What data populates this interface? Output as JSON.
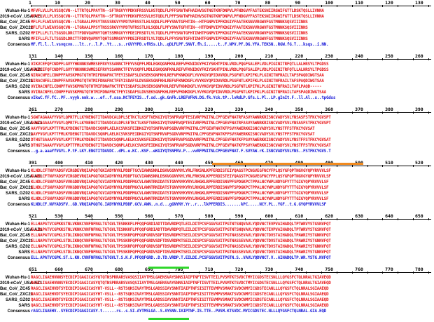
{
  "labels": [
    "Wuhan-Hu-1",
    "2019-nCoV_USA-AZ1",
    "Bat_CoV_ZC45",
    "Bat_CoV_ZXC21",
    "SARS_GZ02",
    "SARS",
    "Consensus"
  ],
  "colors": {
    "identical": "#e8171a",
    "consensus": "#1a1ad8",
    "ruler": "#000000",
    "rbd_marker": "#f08a1f",
    "cleavage_marker": "#2fd72a"
  },
  "blocks": [
    {
      "ruler": [
        "1",
        "10",
        "20",
        "30",
        "40",
        "50",
        "60",
        "70",
        "80",
        "90",
        "100",
        "110",
        "120",
        "130"
      ],
      "rows": [
        "MFVFLVLLPLVSSQCVN--LTTRTQLPPAYTN--SFTRGVYYPDKVFRSSVLHSTQDLFLPFFSNVTWFHAIHVSGTNGTKRFDNPVLPFNDGVYFASTEKSNIIRGWIFGTTLDSKTQSLLIVNNA",
        "MFVFLVLLPLVSSQCVN--LTTRTQLPPAYTN--SFTRGVYYPDKVFRSSVLHSTQDLFLPFFSNVTWFHAIHVSGTNGTKRFDNPVLPFNDGVYFASTEKSNIIRGWIFGTTLDSKTQSLLIVNNA",
        "MFLFLFLWIAVSGQCVN--LTGRAALPPSYTNSSSRGVYYPDTVFRSSTLHLSQDLFLPFYSNVTGFHTIN--HTFGNPVIPFKDGIYFAATEKSNVVRGWVFGSTMNNKSQSVIIINNS",
        "MFLFLFLWIAVSGQCVN--LTGRAALPPSYTNSSSRGVYYPDTVFRSSTLHLSQDLFLPFYSNVTGFHTIN--HTFDNPVIPFKDGIYFAATEKSNVVRGWVFGSTMNNKSQSVIIINNS",
        "MFIFLLFLTLTSGSDLDRCTTFDDVQAPNYTQHTSSMRGVYYPDEIFRSDTLYLTQDLFLPFYSNVTGFHTINHTFGNPVIPFKDGIYFAATEKSNVVRGWVFGSTMNNKSQSVIIINNS",
        "MFIFLLFLTLTSGSDLDRCTTFDDVQAPNYTQHTSSMRGVYYPDEIFRSDTLYLTQDLFLPFYSNVTGFHTINHTFGNPVIPFKDGIYFAATEKSNVVRGWVFGSTMNNKSQSVIIINNS",
        "MF.fl.l..l.vsvqcvn...lt..r..l.P..Yt...s..rGVYYPD.vfRSs.Lh..qDLFLPF.SNVT.fh.i.....t..F.NPV.PF.DG.YFA.TEKSN..RGW.fG.T...ksqs..i.NN."
      ]
    },
    {
      "ruler": [
        "131",
        "140",
        "150",
        "160",
        "170",
        "180",
        "190",
        "200",
        "210",
        "220",
        "230",
        "240",
        "250",
        "260"
      ],
      "rows": [
        "VIKVCEFQFCNDPFLGVYYHKNNKSWMESEFRVYSSANNCTFEYVSQPFLMDLEGKQGNFKNLREFVFKNIDGYFKIYSKHTPINLVRDLPQGFSALEPLVDLPIGINITRFQTLLALHRSYLTPGDSS",
        "VIKVCEFQFCNDPFLGVYYHKNNKSWMESEFRVYSSANNCTFEYVSQPFLMDLEGKQGNFKNLREFVFKNIDGYFKIYSKHTPINLVRDLPQGFSALEPLVDLPIGINITRFQTLLALHRSYLTPGDSS",
        "NIRACNFELCDNPFFAVSKPMGTQTHTMIFDNAFNCTFEYISDAFSLDVSEKSGNFKHLREFVFKNKDGFLYVYKGYQPIDVVRDLPSGFNTLKPIFKLPLGINITNFRAILTAFSPAQDIWGTSAA",
        "NIRACNFELCDNPFFAVSKPMGTQTHTMIFDNAFNCTFEYISDAFSLDVSEKSGNFKHLREFVFKNKDGFLYVYKGYQPIDVVRDLPSGFNTLKPIFKLPLGINITNFRAILTAFSPAQDIWGTSAA",
        "VVIRACNFELCDNPFFAVSKPMGTQTHTMIFDNAFNCTFEYISDAFSLDVSEKSGNFKHLREFVFKNKDGFLYVYKGYQPIDVVRDLPSGFNTLKPIFKLPLGINITNFRAILTAFLPAQD-----",
        "VVIRACNFELCDNPFFAVSKPMGTQTHTMIFDNAFNCTFEYISDAFSLDVSEKSGNFKHLREFVFKNKDGFLYVYKGYQPIDVVRDLPSGFNTLKPIFKLPLGINITNFRAILTAFSPAQDIWGTSAA",
        "vIkwC.fF.fC..PF..vyyh.nnk.w...ef..f.ssa.NCTFEYIS..f.sd..gk.GnFk.LREFVFkN.DG.fk.Yck.tP..lvRdLP.Gfs.L.Pl..LP.gInIt.F..ll.Al..s..tpGdss"
      ]
    },
    {
      "ruler": [
        "261",
        "270",
        "280",
        "290",
        "300",
        "310",
        "320",
        "330",
        "340",
        "350",
        "360",
        "370",
        "380",
        "390"
      ],
      "rows": [
        "SGWTAGAAAYYVGYLQPRTFLLKYNENGTITDAVDCALDPLSETKCTLKSFTVEKGIYQTSNFRVQPTESIVRFPNITNLCPFGEVFNATRFASVYAWNRKRISNCVADYSVLYNSASFSTFKCYGVSPT",
        "SGWTAGAAAYYVGYLQPRTFLLKYNENGTITDAVDCALDPLSETKCTLKSFTVEKGIYQTSNFRVQPTESIVRFPNITNLCPFGEVFNATRFASVYAWNRKRISNCVADYSVLYNSASFSTFKCYGVSPT",
        "AAYFVGYLKPTTFMLKYDENGTITDAVDCSQNPLAELKCSVKSFEIDKGIYQTSNFRVVPSGDVVRFPNITNLCPFGEVFNATKFPSVYAWERKKISNCVADYSVLYNSTFFSTFKCYGVSAT",
        "AAYFVGYLKPTTFMLKYDENGTITDAVDCSQNPLAELKCSVKSFEIDKGIYQTSNFRVVPSGDVVRFPNITNLCPFGEVFNATKFPSVYAWERKKISNCVADYSVLYNSTFFSTFKCYGVSAT",
        "DTHGTSAAAYFVGYLKPTTFMLKYDENGTITDAVDCSQNPLAELKCSVKSFEIDKGIYQTSNFRVVPSGDVVRFPNITNLCPFGEVFNATKFPSVYAWERKKISNCVADYSVLYNSTFFSTFKCYGVSAT",
        "DTHGTSAAAYFVGYLKPTTFMLKYDENGTITDAVDCSQNPLAELKCSVKSFEIDKGIYQTSNFRVVPSGDVVRFPNITNLCPFGEVFNATKFPSVYAWERKKISNCVADYSVLYNSTFFSTFKCYGVSAT",
        "..g.a.aaaYfVGYL.P.tF.LKY.ENGTITDAVDC..dPL.e.KC..KSF..eKGIYQTSNFRV.P...vvRFPNITNLCPFGEVFNAT.F.SVYAW.rK.ISNCVADYSVLYNS..FSTFKCYGVS.T"
      ]
    },
    {
      "ruler": [
        "391",
        "400",
        "410",
        "420",
        "430",
        "440",
        "450",
        "460",
        "470",
        "480",
        "490",
        "500",
        "510",
        "520"
      ],
      "rows": [
        "KLNDLCFTNVYADSFVIRGDEVRQIAPGQTGKIADYNYKLPDDFTGCVIAWNSNNLDSKVGGNYNYLYRLFRKSNLKPFERDISTEIYQAGSTPCNGVEGFNCYFPLQSYGFQPTNGVGYQPYRVVVLSF",
        "KLNDLCFTNVYADSFVIRGDEVRQIAPGQTGKIADYNYKLPDDFTGCVIAWNSNNLDSKVGGNYNYLYRLFRKSNLKPFERDISTEIYQAGSTPCNGVEGFNCYFPLQSYGFQPTNGVGYQPYRVVVLSF",
        "KLNDLCFSNVYADSFVVKGDDVRQIAPGQTGVIADYNYKLPDDFMGCVLAWNTRNIDATSTGNYNYKYRYLRHGKLRPFERDISNVPFSPDGKPCTPPALNCYWPLNDYGFYTTTGIGYQPYRVVVLSF",
        "KLNDLCFSNVYADSFVVKGDDVRQIAPGQTGVIADYNYKLPDDFMGCVLAWNTRNIDATSTGNYNYKYRYLRHGKLRPFERDISNVPFSPDGKPCTPPALNCYWPLNDYGFYTTTGIGYQPYRVVVLSF",
        "KLNDLCFSNVYADSFVVKGDDVRQIAPGQTGVIADYNYKLPDDFMGCVLAWNTRNIDATSTGNYNYKYRYLRHGKLRPFERDISNVPFSPDGKPCTPPALNCYWPLNDYGFYTTTGIGYQPYRVVVLSF",
        "KLNDLCFSNVYADSFVVKGDDVRQIAPGQTGVIADYNYKLPDDFMGCVLAWNTRNIDATSTGNYNYKYRYLRHGKLRPFERDISNVPFSPDGKPCTPPALNCYWPLNDYGFYTTTGIGYQPYRVVVLSF",
        "KLNDLCF.NVYADSFV..GD.VRQIAPGQTG.IADYNYKLPDDF.GCV.AWN..n.d...gGNYNY.Yr..r...lkPFERDIS.......kPC.....NCY.PL..YGF..t.G.GYQPYRVVVLSF"
      ]
    },
    {
      "ruler": [
        "521",
        "530",
        "540",
        "550",
        "560",
        "570",
        "580",
        "590",
        "600",
        "610",
        "620",
        "630",
        "640",
        "650"
      ],
      "rows": [
        "ELLHAPATVCGPKKSTNLVKNKCVNFNFNGLTGTGVLTESNKKFLPFQQFGRDIADTTDAVRDPQTLEILDITPCSFGGVSVITPGTNTSNQVAVLYQDVNCTEVPVAIHADQLTPTWRVYSTGSNVFQT",
        "ELLHAPATVCGPKKSTNLVKNKCVNFNFNGLTGTGVLTESNKKFLPFQQFGRDIADTTDAVRDPQTLEILDITPCSFGGVSVITPGTNTSNQVAVLYQDVNCTEVPVAIHADQLTPTWRVYSTGSNVFQT",
        "ELLNAPATVCGPKLSTDLIKNQCVNFNFNGLTGTGVLTPSSKRFQPFQQFGRDVSDFTDSVRDPKTSEILDISPCSFGGVSVITPGTNASSEVAVLYQDVNCTDVSTAIHADQLTPAWRIYSTGNNVFQT",
        "ELLNAPATVCGPKLSTDLIKNQCVNFNFNGLTGTGVLTPSSKRFQPFQQFGRDVSDFTDSVRDPKTSEILDISPCSFGGVSVITPGTNASSEVAVLYQDVNCTDVSTAIHADQLTPAWRIYSTGNNVFQT",
        "ELLNAPATVCGPKLSTDLIKNQCVNFNFNGLTGTGVLTPSSKRFQPFQQFGRDVSDFTDSVRDPKTSEILDISPCSFGGVSVITPGTNASSEVAVLYQDVNCTDVSTAIHADQLTPAWRIYSTGNNVFQT",
        "ELLNAPATVCGPKLSTDLIKNQCVNFNFNGLTGTGVLTPSSKRFQPFQQFGRDVSDFTDSVRDPKTSEILDISPCSFGGVSVITPGTNASSEVAVLYQDVNCTDVSTAIHADQLTPAWRIYSTGNNVFQT",
        "ELL.APATVCGPK.ST.L.KN.CVNFNFNGLTGTGVLT.S.K.F.PFQQFGRD..D.TD.VRDP.T.EILDI.PCSFGGVSVITPGTN.S..VAVLYQDVNCT.V..AIHADQLTP.WR.YSTG.NVFQT"
      ]
    },
    {
      "ruler": [
        "651",
        "660",
        "670",
        "680",
        "690",
        "700",
        "710",
        "720",
        "730",
        "740",
        "750",
        "760",
        "770",
        "780"
      ],
      "rows": [
        "RAGCLIGAEHVNNSYECDIPIGAGICASYQTQTNSPRRARSVASQSIIAYTMSLGAENSVAYSNNSIAIPTNFTISVTTEILPVSMTKTSVDCTMYICGDSTECSNLLLQYGSFCTQLNRALTGIAVEQD",
        "RAGCLIGAEHVNNSYECDIPIGAGICASYQTQTNSPRRARSVASQSIIAYTMSLGAENSVAYSNNSIAIPTNFTISVTTEILPVSMTKTSVDCTMYICGDSTECSNLLLQYGSFCTQLNRALTGIAVEQD",
        "RAGCLIGAEHVDTSYECDIPIGAGICASYHT-VSLL--RSTSQKSIVAYTMSLGADSSIAYSNNTIAIPTNFSISITTEVMPVSMAKTSVDCNMYICGDSTECANLLLQYGSFCTQLNRALSGIAAEQD",
        "RAGCLIGAEHVDTSYECDIPIGAGICASYHT-VSLL--RSTSQKSIVAYTMSLGADSSIAYSNNTIAIPTNFSISITTEVMPVSMAKTSVDCNMYICGDSTECANLLLQYGSFCTQLNRALSGIAAEQD",
        "QAGCLIGAEHVDTSYECDIPIGAGICASYHT-VSLL--RSTSQKSIVAYTMSLGADSSIAYSNNTIAIPTNFSISITTEVMPVSMAKTSVDCNMYICGDSTECANLLLQYGSFCTQLNRALSGIAAEQD",
        "QAGCLIGAEHVDTSYECDIPIGAGICASYHT-VSLL--RSTSQKSIVAYTMSLGADSSIAYSNNTIAIPTNFSISITTEVMPVSMAKTSVDCNMYICGDSTECANLLLQYGSFCTQLNRALSGIAAEQD",
        "rAGCLIGAEHV..SYECDIPIGAGICASY.t......rs..s.SI.AYTMSLGA..S.AYSNN.IAIPTNF.IS.TTE..PVSM.KTSVDC.MYICGDSTEC.NLLLQYGSFCTQLNRAL.GIA.EQD"
      ]
    }
  ]
}
